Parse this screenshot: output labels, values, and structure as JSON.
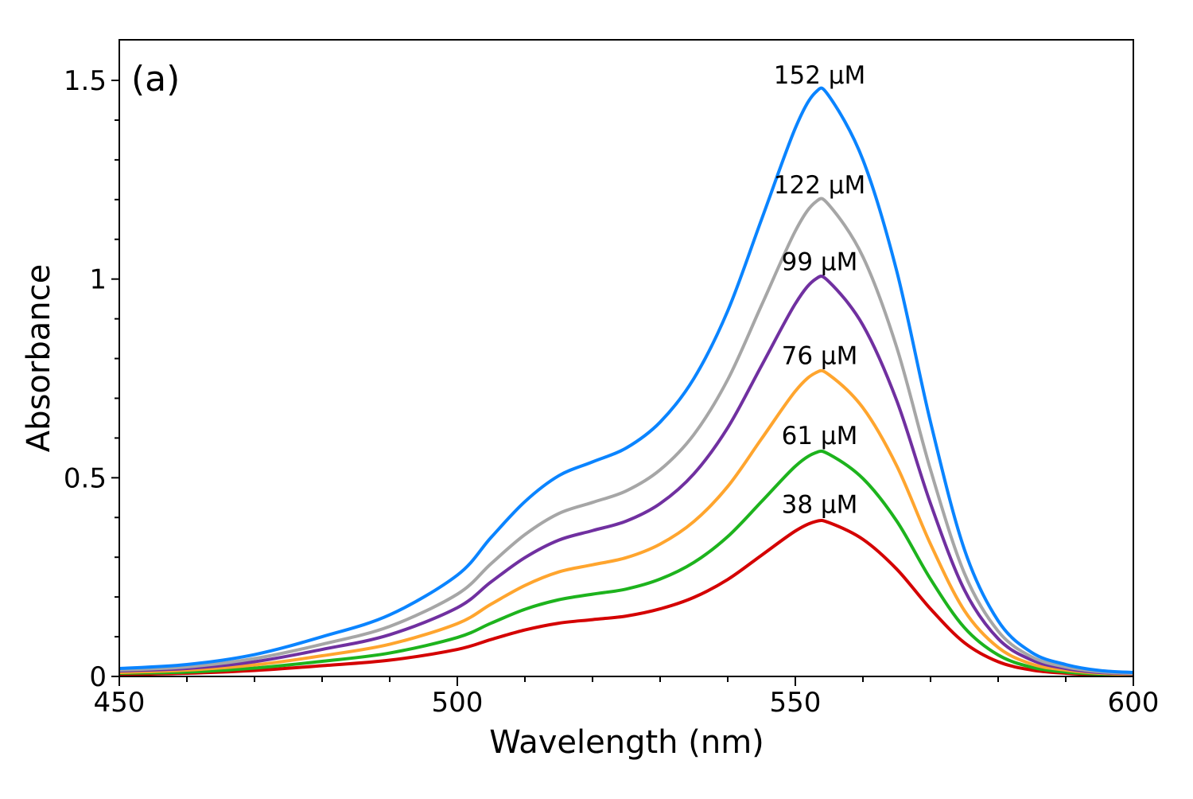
{
  "chart_data": {
    "type": "line",
    "panel_label": "(a)",
    "xlabel": "Wavelength (nm)",
    "ylabel": "Absorbance",
    "xlim": [
      450,
      600
    ],
    "ylim": [
      0,
      1.6
    ],
    "xticks": [
      450,
      500,
      550,
      600
    ],
    "xtick_labels": [
      "450",
      "500",
      "550",
      "600"
    ],
    "yticks": [
      0,
      0.5,
      1,
      1.5
    ],
    "ytick_labels": [
      "0",
      "0.5",
      "1",
      "1.5"
    ],
    "grid": false,
    "x": [
      450,
      460,
      470,
      480,
      490,
      500,
      505,
      510,
      515,
      520,
      525,
      530,
      535,
      540,
      545,
      550,
      553,
      555,
      560,
      565,
      570,
      575,
      580,
      585,
      590,
      595,
      600
    ],
    "series": [
      {
        "name": "152 µM",
        "color": "#0a84ff",
        "values": [
          0.02,
          0.03,
          0.055,
          0.1,
          0.155,
          0.255,
          0.35,
          0.44,
          0.505,
          0.54,
          0.575,
          0.64,
          0.75,
          0.92,
          1.15,
          1.38,
          1.47,
          1.46,
          1.3,
          1.02,
          0.64,
          0.32,
          0.14,
          0.06,
          0.03,
          0.015,
          0.01
        ]
      },
      {
        "name": "122 µM",
        "color": "#a6a6a6",
        "values": [
          0.016,
          0.024,
          0.045,
          0.081,
          0.126,
          0.207,
          0.284,
          0.357,
          0.41,
          0.438,
          0.467,
          0.52,
          0.609,
          0.747,
          0.934,
          1.121,
          1.194,
          1.186,
          1.056,
          0.828,
          0.52,
          0.26,
          0.114,
          0.049,
          0.024,
          0.012,
          0.008
        ]
      },
      {
        "name": "99 µM",
        "color": "#7030a0",
        "values": [
          0.014,
          0.02,
          0.037,
          0.068,
          0.105,
          0.173,
          0.238,
          0.299,
          0.343,
          0.367,
          0.391,
          0.435,
          0.51,
          0.626,
          0.782,
          0.938,
          1.0,
          0.993,
          0.884,
          0.694,
          0.435,
          0.218,
          0.095,
          0.041,
          0.02,
          0.01,
          0.007
        ]
      },
      {
        "name": "76 µM",
        "color": "#ffa52e",
        "values": [
          0.01,
          0.016,
          0.029,
          0.052,
          0.081,
          0.133,
          0.182,
          0.229,
          0.263,
          0.281,
          0.299,
          0.333,
          0.39,
          0.478,
          0.598,
          0.718,
          0.764,
          0.759,
          0.676,
          0.53,
          0.333,
          0.166,
          0.073,
          0.031,
          0.016,
          0.008,
          0.005
        ]
      },
      {
        "name": "61 µM",
        "color": "#1db31d",
        "values": [
          0.008,
          0.011,
          0.021,
          0.038,
          0.059,
          0.098,
          0.134,
          0.169,
          0.193,
          0.207,
          0.22,
          0.245,
          0.287,
          0.352,
          0.44,
          0.529,
          0.563,
          0.559,
          0.498,
          0.391,
          0.245,
          0.123,
          0.054,
          0.023,
          0.011,
          0.006,
          0.004
        ]
      },
      {
        "name": "38 µM",
        "color": "#d40000",
        "values": [
          0.005,
          0.008,
          0.015,
          0.027,
          0.041,
          0.068,
          0.093,
          0.117,
          0.134,
          0.143,
          0.152,
          0.17,
          0.199,
          0.244,
          0.305,
          0.366,
          0.39,
          0.387,
          0.345,
          0.27,
          0.17,
          0.085,
          0.037,
          0.016,
          0.008,
          0.004,
          0.003
        ]
      }
    ]
  }
}
